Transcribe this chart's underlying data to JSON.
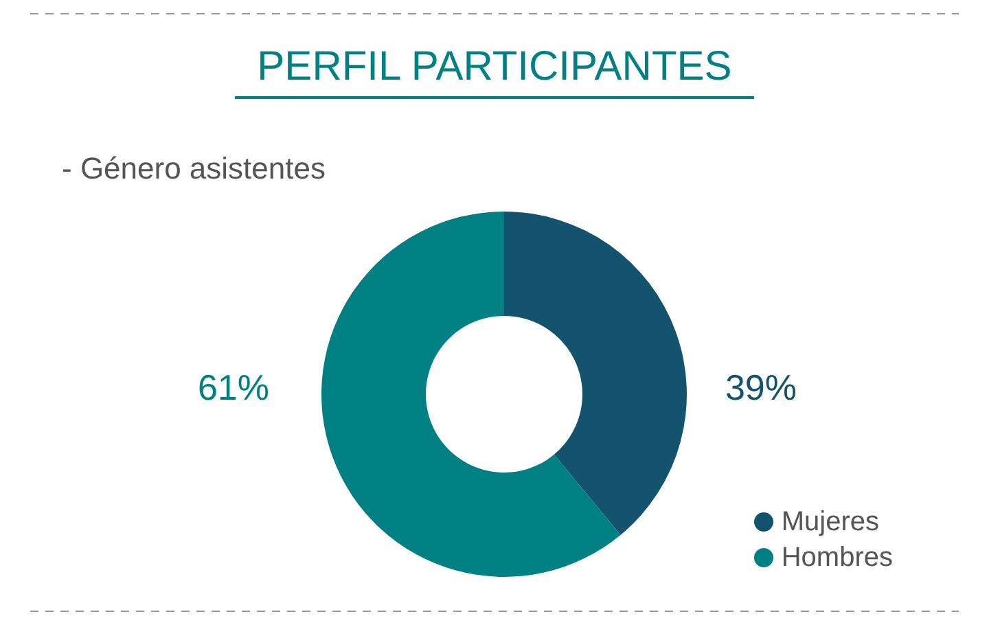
{
  "chart_data": {
    "type": "donut",
    "title": "PERFIL PARTICIPANTES",
    "subtitle": "- Género asistentes",
    "categories": [
      "Mujeres",
      "Hombres"
    ],
    "values": [
      39,
      61
    ],
    "colors": [
      "#13536e",
      "#008083"
    ],
    "value_labels": [
      "39%",
      "61%"
    ],
    "legend": "bottom right"
  }
}
